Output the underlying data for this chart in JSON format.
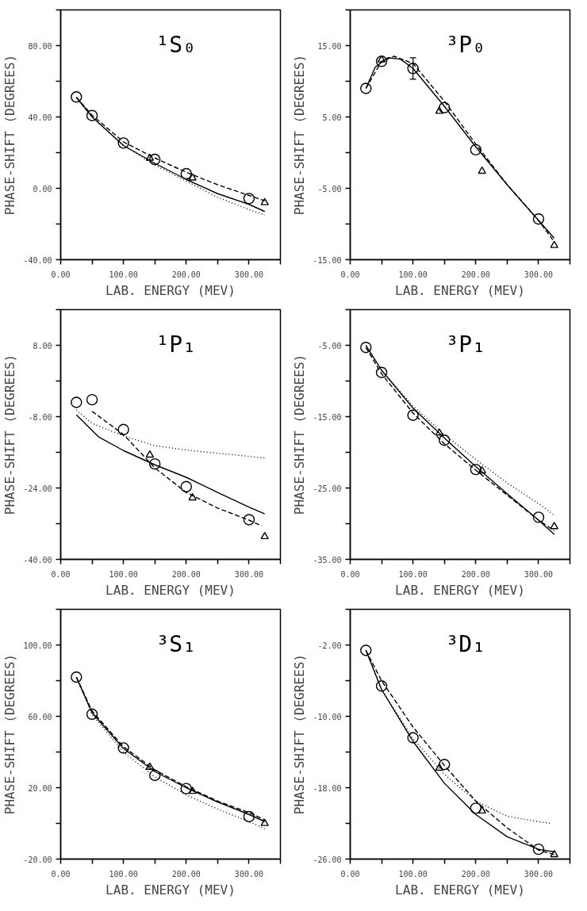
{
  "chart_data": [
    {
      "type": "scatter",
      "title": "¹S₀",
      "xlabel": "LAB. ENERGY (MEV)",
      "ylabel": "PHASE-SHIFT (DEGREES)",
      "xlim": [
        0,
        350
      ],
      "ylim": [
        -40,
        100
      ],
      "xticks": [
        {
          "value": 0,
          "label": "0.00"
        },
        {
          "value": 50,
          "label": null
        },
        {
          "value": 100,
          "label": "100.00"
        },
        {
          "value": 150,
          "label": null
        },
        {
          "value": 200,
          "label": "200.00"
        },
        {
          "value": 250,
          "label": null
        },
        {
          "value": 300,
          "label": "300.00"
        },
        {
          "value": 350,
          "label": null
        }
      ],
      "yticks": [
        {
          "value": -40,
          "label": "-40.00"
        },
        {
          "value": -20,
          "label": null
        },
        {
          "value": 0,
          "label": "0.00"
        },
        {
          "value": 20,
          "label": null
        },
        {
          "value": 40,
          "label": "40.00"
        },
        {
          "value": 60,
          "label": null
        },
        {
          "value": 80,
          "label": "80.00"
        },
        {
          "value": 100,
          "label": null
        }
      ],
      "series": [
        {
          "type": "scatter",
          "marker": "circle",
          "color": "#000000",
          "x": [
            25,
            50,
            100,
            150,
            200,
            300
          ],
          "values": [
            51.2,
            40.8,
            25.4,
            16.2,
            8.2,
            -5.7
          ]
        },
        {
          "type": "scatter",
          "marker": "triangle",
          "color": "#000000",
          "x": [
            142,
            210,
            325
          ],
          "values": [
            16.9,
            5.8,
            -8
          ]
        },
        {
          "type": "line",
          "line_style": "solid",
          "color": "#000000",
          "x": [
            25,
            50,
            100,
            150,
            200,
            250,
            300,
            325
          ],
          "values": [
            51,
            40,
            24,
            14,
            5,
            -3,
            -9,
            -13
          ]
        },
        {
          "type": "line",
          "line_style": "dashed",
          "color": "#000000",
          "x": [
            25,
            50,
            100,
            150,
            200,
            250,
            300,
            325
          ],
          "values": [
            51,
            41,
            26,
            17,
            9,
            2,
            -4,
            -7
          ]
        },
        {
          "type": "line",
          "line_style": "dotted",
          "color": "#000000",
          "x": [
            25,
            50,
            100,
            150,
            200,
            250,
            300,
            325
          ],
          "values": [
            51,
            40,
            24,
            13,
            4,
            -5,
            -12,
            -15
          ]
        }
      ]
    },
    {
      "type": "scatter",
      "title": "³P₀",
      "xlabel": "LAB. ENERGY (MEV)",
      "ylabel": "PHASE-SHIFT (DEGREES)",
      "xlim": [
        0,
        350
      ],
      "ylim": [
        -15,
        20
      ],
      "xticks": [
        {
          "value": 0,
          "label": "0.00"
        },
        {
          "value": 50,
          "label": null
        },
        {
          "value": 100,
          "label": "100.00"
        },
        {
          "value": 150,
          "label": null
        },
        {
          "value": 200,
          "label": "200.00"
        },
        {
          "value": 250,
          "label": null
        },
        {
          "value": 300,
          "label": "300.00"
        },
        {
          "value": 350,
          "label": null
        }
      ],
      "yticks": [
        {
          "value": -15,
          "label": "-15.00"
        },
        {
          "value": -10,
          "label": null
        },
        {
          "value": -5,
          "label": "-5.00"
        },
        {
          "value": 0,
          "label": null
        },
        {
          "value": 5,
          "label": "5.00"
        },
        {
          "value": 10,
          "label": null
        },
        {
          "value": 15,
          "label": "15.00"
        },
        {
          "value": 20,
          "label": null
        }
      ],
      "series": [
        {
          "type": "scatter",
          "marker": "circle",
          "color": "#000000",
          "x": [
            25,
            50,
            100,
            150,
            200,
            300
          ],
          "values": [
            9.0,
            12.8,
            11.8,
            6.3,
            0.4,
            -9.3
          ],
          "errors": [
            null,
            null,
            1.5,
            null,
            null,
            null
          ]
        },
        {
          "type": "scatter",
          "marker": "triangle",
          "color": "#000000",
          "x": [
            50,
            142,
            210,
            325
          ],
          "values": [
            13.0,
            5.8,
            -2.6,
            -13.0
          ]
        },
        {
          "type": "line",
          "line_style": "solid",
          "color": "#000000",
          "x": [
            25,
            40,
            60,
            80,
            100,
            150,
            200,
            250,
            300,
            325
          ],
          "values": [
            9,
            12,
            13.3,
            13.1,
            11.8,
            6.5,
            0.8,
            -4.5,
            -9.5,
            -12
          ]
        },
        {
          "type": "line",
          "line_style": "dashed",
          "color": "#000000",
          "x": [
            25,
            50,
            70,
            100,
            150,
            200,
            250,
            300,
            325
          ],
          "values": [
            9,
            12.8,
            13.5,
            12.5,
            7.2,
            1.2,
            -4.5,
            -9.5,
            -12.5
          ]
        }
      ]
    },
    {
      "type": "scatter",
      "title": "¹P₁",
      "xlabel": "LAB. ENERGY (MEV)",
      "ylabel": "PHASE-SHIFT (DEGREES)",
      "xlim": [
        0,
        350
      ],
      "ylim": [
        -40,
        16
      ],
      "xticks": [
        {
          "value": 0,
          "label": "0.00"
        },
        {
          "value": 50,
          "label": null
        },
        {
          "value": 100,
          "label": "100.00"
        },
        {
          "value": 150,
          "label": null
        },
        {
          "value": 200,
          "label": "200.00"
        },
        {
          "value": 250,
          "label": null
        },
        {
          "value": 300,
          "label": "300.00"
        },
        {
          "value": 350,
          "label": null
        }
      ],
      "yticks": [
        {
          "value": -40,
          "label": "-40.00"
        },
        {
          "value": -32,
          "label": null
        },
        {
          "value": -24,
          "label": "-24.00"
        },
        {
          "value": -16,
          "label": null
        },
        {
          "value": -8,
          "label": "-8.00"
        },
        {
          "value": 0,
          "label": null
        },
        {
          "value": 8,
          "label": "8.00"
        },
        {
          "value": 16,
          "label": null
        }
      ],
      "series": [
        {
          "type": "scatter",
          "marker": "circle",
          "color": "#000000",
          "x": [
            25,
            50,
            100,
            150,
            200,
            300
          ],
          "values": [
            -4.8,
            -4.2,
            -10.9,
            -18.6,
            -23.7,
            -31.1
          ]
        },
        {
          "type": "scatter",
          "marker": "triangle",
          "color": "#000000",
          "x": [
            142,
            210,
            325
          ],
          "values": [
            -16.6,
            -26.2,
            -34.9
          ]
        },
        {
          "type": "line",
          "line_style": "solid",
          "color": "#000000",
          "x": [
            25,
            60,
            100,
            150,
            200,
            250,
            300,
            325
          ],
          "values": [
            -7.6,
            -12.5,
            -15.6,
            -18.8,
            -21.6,
            -25,
            -28.3,
            -29.8
          ]
        },
        {
          "type": "line",
          "line_style": "dashed",
          "color": "#000000",
          "x": [
            50,
            100,
            150,
            200,
            250,
            300,
            320
          ],
          "values": [
            -6.8,
            -12,
            -19.5,
            -25,
            -28.5,
            -31.2,
            -32.5
          ]
        },
        {
          "type": "line",
          "line_style": "dotted",
          "color": "#000000",
          "x": [
            25,
            50,
            100,
            150,
            200,
            250,
            300,
            325
          ],
          "values": [
            -6.5,
            -9.5,
            -12.3,
            -14.5,
            -15.5,
            -16.2,
            -16.9,
            -17.3
          ]
        }
      ]
    },
    {
      "type": "scatter",
      "title": "³P₁",
      "xlabel": "LAB. ENERGY (MEV)",
      "ylabel": "PHASE-SHIFT (DEGREES)",
      "xlim": [
        0,
        350
      ],
      "ylim": [
        -35,
        0
      ],
      "xticks": [
        {
          "value": 0,
          "label": "0.00"
        },
        {
          "value": 50,
          "label": null
        },
        {
          "value": 100,
          "label": "100.00"
        },
        {
          "value": 150,
          "label": null
        },
        {
          "value": 200,
          "label": "200.00"
        },
        {
          "value": 250,
          "label": null
        },
        {
          "value": 300,
          "label": "300.00"
        },
        {
          "value": 350,
          "label": null
        }
      ],
      "yticks": [
        {
          "value": -35,
          "label": "-35.00"
        },
        {
          "value": -30,
          "label": null
        },
        {
          "value": -25,
          "label": "-25.00"
        },
        {
          "value": -20,
          "label": null
        },
        {
          "value": -15,
          "label": "-15.00"
        },
        {
          "value": -10,
          "label": null
        },
        {
          "value": -5,
          "label": "-5.00"
        },
        {
          "value": 0,
          "label": null
        }
      ],
      "series": [
        {
          "type": "scatter",
          "marker": "circle",
          "color": "#000000",
          "x": [
            25,
            50,
            100,
            150,
            200,
            300
          ],
          "values": [
            -5.3,
            -8.8,
            -14.8,
            -18.3,
            -22.4,
            -29.1
          ]
        },
        {
          "type": "scatter",
          "marker": "triangle",
          "color": "#000000",
          "x": [
            142,
            210,
            325
          ],
          "values": [
            -17.3,
            -22.6,
            -30.4
          ]
        },
        {
          "type": "line",
          "line_style": "solid",
          "color": "#000000",
          "x": [
            25,
            50,
            100,
            150,
            200,
            250,
            300,
            325
          ],
          "values": [
            -5,
            -8.5,
            -13.8,
            -18,
            -22,
            -25.8,
            -29.5,
            -31.5
          ]
        },
        {
          "type": "line",
          "line_style": "dashed",
          "color": "#000000",
          "x": [
            25,
            50,
            100,
            150,
            200,
            250,
            300,
            325
          ],
          "values": [
            -5.3,
            -9,
            -14.5,
            -18.8,
            -22.5,
            -26,
            -29.5,
            -31
          ]
        },
        {
          "type": "line",
          "line_style": "dotted",
          "color": "#000000",
          "x": [
            25,
            50,
            100,
            150,
            200,
            250,
            300,
            325
          ],
          "values": [
            -5,
            -8.5,
            -13.5,
            -17.5,
            -21,
            -24.3,
            -27.2,
            -28.8
          ]
        }
      ]
    },
    {
      "type": "scatter",
      "title": "³S₁",
      "xlabel": "LAB. ENERGY (MEV)",
      "ylabel": "PHASE-SHIFT (DEGREES)",
      "xlim": [
        0,
        350
      ],
      "ylim": [
        -20,
        120
      ],
      "xticks": [
        {
          "value": 0,
          "label": "0.00"
        },
        {
          "value": 50,
          "label": null
        },
        {
          "value": 100,
          "label": "100.00"
        },
        {
          "value": 150,
          "label": null
        },
        {
          "value": 200,
          "label": "200.00"
        },
        {
          "value": 250,
          "label": null
        },
        {
          "value": 300,
          "label": "300.00"
        },
        {
          "value": 350,
          "label": null
        }
      ],
      "yticks": [
        {
          "value": -20,
          "label": "-20.00"
        },
        {
          "value": 0,
          "label": null
        },
        {
          "value": 20,
          "label": "20.00"
        },
        {
          "value": 40,
          "label": null
        },
        {
          "value": 60,
          "label": "60.00"
        },
        {
          "value": 80,
          "label": null
        },
        {
          "value": 100,
          "label": "100.00"
        },
        {
          "value": 120,
          "label": null
        }
      ],
      "series": [
        {
          "type": "scatter",
          "marker": "circle",
          "color": "#000000",
          "x": [
            25,
            50,
            100,
            150,
            200,
            300
          ],
          "values": [
            82,
            61.2,
            42.3,
            26.9,
            19.5,
            3.8
          ]
        },
        {
          "type": "scatter",
          "marker": "triangle",
          "color": "#000000",
          "x": [
            142,
            210,
            325
          ],
          "values": [
            31.5,
            18,
            0
          ]
        },
        {
          "type": "line",
          "line_style": "solid",
          "color": "#000000",
          "x": [
            25,
            50,
            100,
            150,
            200,
            250,
            300,
            325
          ],
          "values": [
            82,
            62,
            42,
            29,
            20,
            12,
            5,
            1
          ]
        },
        {
          "type": "line",
          "line_style": "dashed",
          "color": "#000000",
          "x": [
            25,
            50,
            100,
            150,
            200,
            250,
            300,
            325
          ],
          "values": [
            82,
            63,
            43,
            30,
            20.5,
            12.5,
            6,
            2
          ]
        },
        {
          "type": "line",
          "line_style": "dotted",
          "color": "#000000",
          "x": [
            25,
            50,
            100,
            150,
            200,
            250,
            300,
            325
          ],
          "values": [
            82,
            61,
            40,
            26,
            16,
            8,
            1,
            -3
          ]
        }
      ]
    },
    {
      "type": "scatter",
      "title": "³D₁",
      "xlabel": "LAB. ENERGY (MEV)",
      "ylabel": "PHASE-SHIFT (DEGREES)",
      "xlim": [
        0,
        350
      ],
      "ylim": [
        -26,
        2
      ],
      "xticks": [
        {
          "value": 0,
          "label": "0.00"
        },
        {
          "value": 50,
          "label": null
        },
        {
          "value": 100,
          "label": "100.00"
        },
        {
          "value": 150,
          "label": null
        },
        {
          "value": 200,
          "label": "200.00"
        },
        {
          "value": 250,
          "label": null
        },
        {
          "value": 300,
          "label": "300.00"
        },
        {
          "value": 350,
          "label": null
        }
      ],
      "yticks": [
        {
          "value": -26,
          "label": "-26.00"
        },
        {
          "value": -22,
          "label": null
        },
        {
          "value": -18,
          "label": "-18.00"
        },
        {
          "value": -14,
          "label": null
        },
        {
          "value": -10,
          "label": "-10.00"
        },
        {
          "value": -6,
          "label": null
        },
        {
          "value": -2,
          "label": "-2.00"
        },
        {
          "value": 2,
          "label": null
        }
      ],
      "series": [
        {
          "type": "scatter",
          "marker": "circle",
          "color": "#000000",
          "x": [
            25,
            50,
            100,
            150,
            200,
            300
          ],
          "values": [
            -2.6,
            -6.6,
            -12.4,
            -15.4,
            -20.3,
            -24.9
          ]
        },
        {
          "type": "scatter",
          "marker": "triangle",
          "color": "#000000",
          "x": [
            142,
            210,
            325
          ],
          "values": [
            -15.8,
            -20.6,
            -25.5
          ]
        },
        {
          "type": "line",
          "line_style": "solid",
          "color": "#000000",
          "x": [
            25,
            50,
            100,
            150,
            200,
            250,
            300,
            325
          ],
          "values": [
            -2.6,
            -7,
            -12.8,
            -17.5,
            -21,
            -23.5,
            -24.9,
            -25.2
          ]
        },
        {
          "type": "line",
          "line_style": "dashed",
          "color": "#000000",
          "x": [
            25,
            50,
            100,
            150,
            200,
            250,
            300,
            325
          ],
          "values": [
            -2.6,
            -6,
            -11.2,
            -15.5,
            -19.5,
            -22.5,
            -25,
            -25.5
          ]
        },
        {
          "type": "line",
          "line_style": "dotted",
          "color": "#000000",
          "x": [
            25,
            50,
            100,
            150,
            200,
            250,
            300,
            320
          ],
          "values": [
            -2.6,
            -7,
            -12.5,
            -16.5,
            -19.5,
            -21.2,
            -21.8,
            -22
          ]
        }
      ]
    }
  ]
}
